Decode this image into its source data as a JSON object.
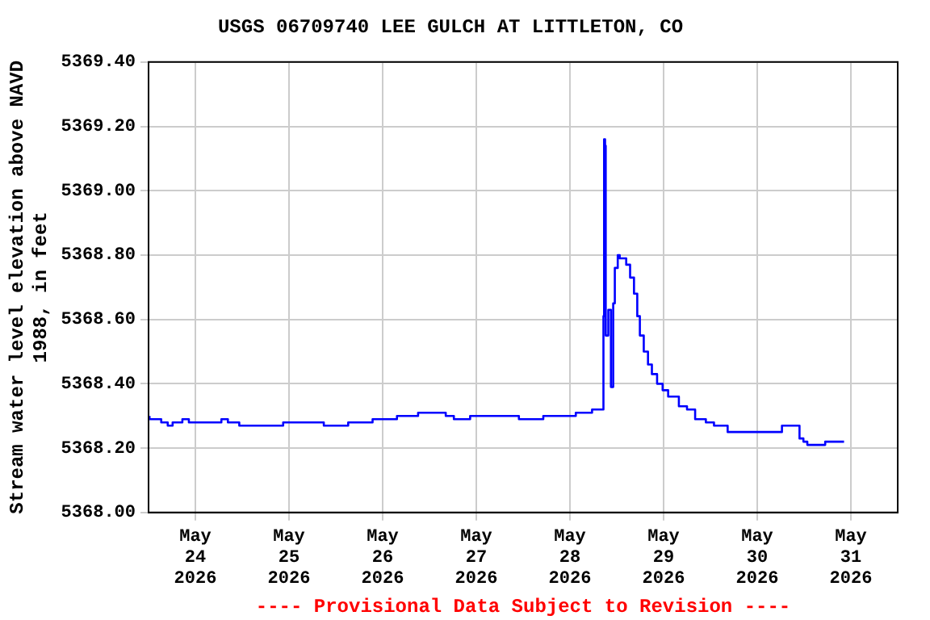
{
  "chart_data": {
    "type": "step",
    "title": "USGS 06709740 LEE GULCH AT LITTLETON, CO",
    "ylabel": "Stream water level elevation above NAVD\n1988, in feet",
    "annotations": [
      "---- Provisional Data Subject to Revision ----"
    ],
    "xlim": [
      "2026-05-23T12:00",
      "2026-05-31T12:00"
    ],
    "xticks": [
      {
        "value": "2026-05-24",
        "label": "May\n24\n2026"
      },
      {
        "value": "2026-05-25",
        "label": "May\n25\n2026"
      },
      {
        "value": "2026-05-26",
        "label": "May\n26\n2026"
      },
      {
        "value": "2026-05-27",
        "label": "May\n27\n2026"
      },
      {
        "value": "2026-05-28",
        "label": "May\n28\n2026"
      },
      {
        "value": "2026-05-29",
        "label": "May\n29\n2026"
      },
      {
        "value": "2026-05-30",
        "label": "May\n30\n2026"
      },
      {
        "value": "2026-05-31",
        "label": "May\n31\n2026"
      }
    ],
    "ylim": [
      5368.0,
      5369.4
    ],
    "yticks": [
      {
        "value": 5368.0,
        "label": "5368.00"
      },
      {
        "value": 5368.2,
        "label": "5368.20"
      },
      {
        "value": 5368.4,
        "label": "5368.40"
      },
      {
        "value": 5368.6,
        "label": "5368.60"
      },
      {
        "value": 5368.8,
        "label": "5368.80"
      },
      {
        "value": 5369.0,
        "label": "5369.00"
      },
      {
        "value": 5369.2,
        "label": "5369.20"
      },
      {
        "value": 5369.4,
        "label": "5369.40"
      }
    ],
    "grid": true,
    "legend": false,
    "marker": "none",
    "line_style": "solid",
    "x": [
      "2026-05-23T12:15",
      "2026-05-23T15:15",
      "2026-05-23T16:55",
      "2026-05-23T18:10",
      "2026-05-23T20:40",
      "2026-05-23T22:20",
      "2026-05-24T06:40",
      "2026-05-24T08:20",
      "2026-05-24T11:15",
      "2026-05-24T15:25",
      "2026-05-24T22:30",
      "2026-05-25T02:40",
      "2026-05-25T08:55",
      "2026-05-25T15:10",
      "2026-05-25T21:25",
      "2026-05-26T03:40",
      "2026-05-26T09:05",
      "2026-05-26T11:10",
      "2026-05-26T16:10",
      "2026-05-26T18:15",
      "2026-05-26T22:25",
      "2026-05-27T05:05",
      "2026-05-27T10:55",
      "2026-05-27T17:10",
      "2026-05-28T01:30",
      "2026-05-28T05:40",
      "2026-05-28T08:35",
      "2026-05-28T08:45",
      "2026-05-28T09:00",
      "2026-05-28T09:10",
      "2026-05-28T09:50",
      "2026-05-28T10:30",
      "2026-05-28T11:05",
      "2026-05-28T11:30",
      "2026-05-28T12:15",
      "2026-05-28T12:45",
      "2026-05-28T13:20",
      "2026-05-28T14:25",
      "2026-05-28T15:25",
      "2026-05-28T16:25",
      "2026-05-28T17:15",
      "2026-05-28T17:55",
      "2026-05-28T18:55",
      "2026-05-28T20:00",
      "2026-05-28T21:00",
      "2026-05-28T22:20",
      "2026-05-28T23:45",
      "2026-05-29T01:10",
      "2026-05-29T03:55",
      "2026-05-29T06:00",
      "2026-05-29T08:05",
      "2026-05-29T10:50",
      "2026-05-29T12:55",
      "2026-05-29T16:25",
      "2026-05-29T18:30",
      "2026-05-30T02:50",
      "2026-05-30T06:20",
      "2026-05-30T08:20",
      "2026-05-30T10:50",
      "2026-05-30T11:50",
      "2026-05-30T12:50",
      "2026-05-30T15:05",
      "2026-05-30T17:25",
      "2026-05-30T20:10",
      "2026-05-30T22:15"
    ],
    "series": [
      {
        "color": "#0000ff",
        "values": [
          5368.3,
          5368.29,
          5368.28,
          5368.27,
          5368.28,
          5368.29,
          5368.28,
          5368.29,
          5368.28,
          5368.27,
          5368.27,
          5368.28,
          5368.28,
          5368.27,
          5368.28,
          5368.29,
          5368.3,
          5368.31,
          5368.31,
          5368.3,
          5368.29,
          5368.3,
          5368.3,
          5368.29,
          5368.3,
          5368.31,
          5368.32,
          5368.61,
          5369.16,
          5369.14,
          5368.55,
          5368.63,
          5368.39,
          5368.65,
          5368.76,
          5368.8,
          5368.79,
          5368.79,
          5368.77,
          5368.73,
          5368.68,
          5368.61,
          5368.55,
          5368.5,
          5368.46,
          5368.43,
          5368.4,
          5368.38,
          5368.36,
          5368.33,
          5368.32,
          5368.29,
          5368.28,
          5368.27,
          5368.25,
          5368.25,
          5368.25,
          5368.27,
          5368.27,
          5368.23,
          5368.22,
          5368.21,
          5368.21,
          5368.22,
          5368.22
        ]
      }
    ]
  }
}
